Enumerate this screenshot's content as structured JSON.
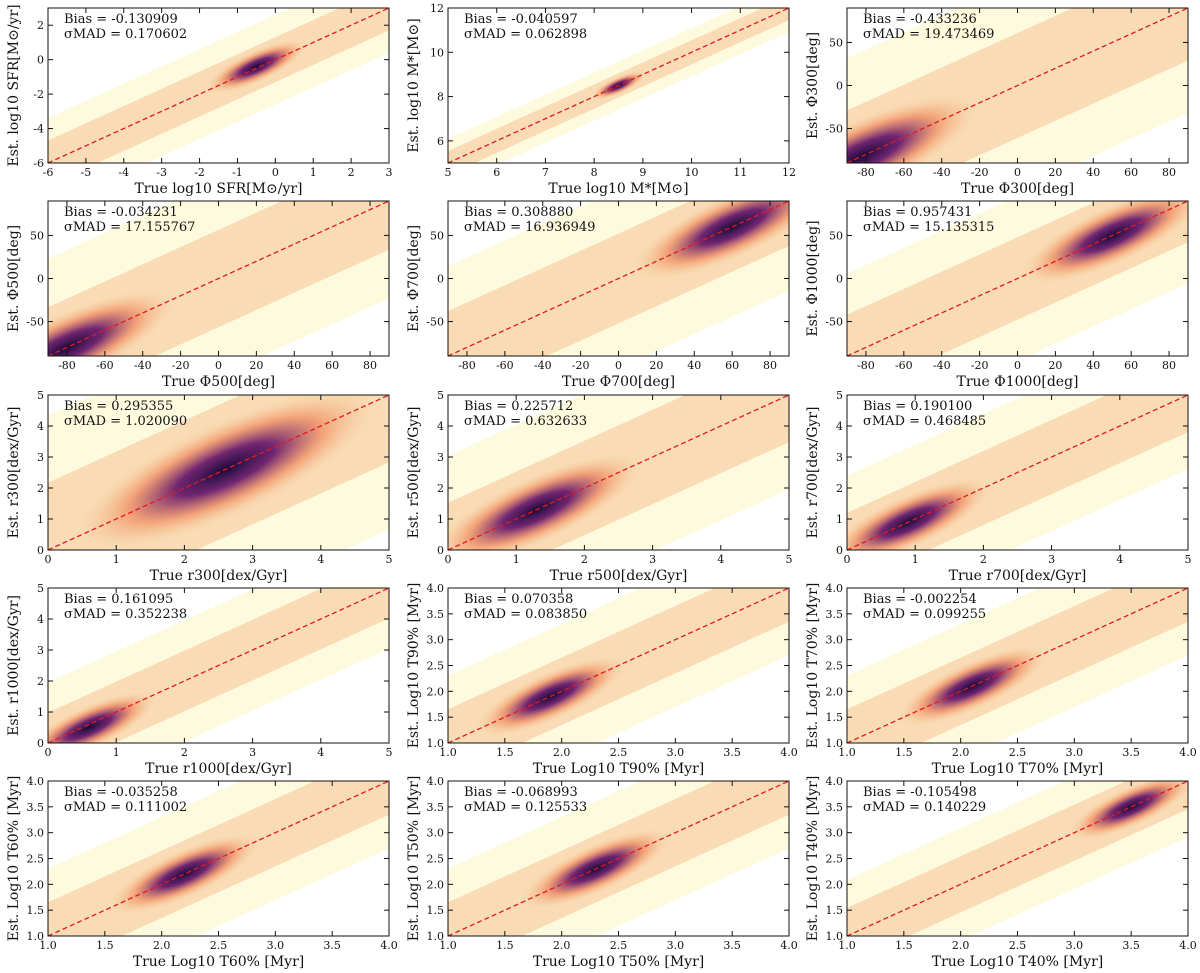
{
  "colors": {
    "identity_line": "#e41a1c",
    "density_low": "#fbf5c2",
    "density_mid": "#f08a5e",
    "density_high": "#1b0b3b"
  },
  "chart_data": [
    {
      "type": "scatter",
      "xlabel": "True log10 SFR[M⊙/yr]",
      "ylabel": "Est. log10 SFR[M⊙/yr]",
      "xlim": [
        -6,
        3
      ],
      "ylim": [
        -6,
        3
      ],
      "xticks": [
        -6,
        -5,
        -4,
        -3,
        -2,
        -1,
        0,
        1,
        2,
        3
      ],
      "yticks": [
        -6,
        -4,
        -2,
        0,
        2
      ],
      "bias_label": "Bias = -0.130909",
      "mad_label": "σMAD = 0.170602",
      "identity_line": [
        [
          -6,
          -6
        ],
        [
          3,
          3
        ]
      ],
      "density_peak": [
        -0.5,
        -0.4
      ],
      "spread": 0.6
    },
    {
      "type": "scatter",
      "xlabel": "True log10 M*[M⊙]",
      "ylabel": "Est. log10 M*[M⊙]",
      "xlim": [
        5,
        12
      ],
      "ylim": [
        5,
        12
      ],
      "xticks": [
        5,
        6,
        7,
        8,
        9,
        10,
        11,
        12
      ],
      "yticks": [
        6,
        8,
        10,
        12
      ],
      "bias_label": "Bias = -0.040597",
      "mad_label": "σMAD = 0.062898",
      "identity_line": [
        [
          5,
          5
        ],
        [
          12,
          12
        ]
      ],
      "density_peak": [
        8.5,
        8.5
      ],
      "spread": 0.25
    },
    {
      "type": "scatter",
      "xlabel": "True Φ300[deg]",
      "ylabel": "Est. Φ300[deg]",
      "xlim": [
        -90,
        90
      ],
      "ylim": [
        -90,
        90
      ],
      "xticks": [
        -80,
        -60,
        -40,
        -20,
        0,
        20,
        40,
        60,
        80
      ],
      "yticks": [
        -50,
        0,
        50
      ],
      "bias_label": "Bias = -0.433236",
      "mad_label": "σMAD = 19.473469",
      "identity_line": [
        [
          -90,
          -90
        ],
        [
          90,
          90
        ]
      ],
      "density_peak": [
        -82,
        -82
      ],
      "spread": 28
    },
    {
      "type": "scatter",
      "xlabel": "True Φ500[deg]",
      "ylabel": "Est. Φ500[deg]",
      "xlim": [
        -90,
        90
      ],
      "ylim": [
        -90,
        90
      ],
      "xticks": [
        -80,
        -60,
        -40,
        -20,
        0,
        20,
        40,
        60,
        80
      ],
      "yticks": [
        -50,
        0,
        50
      ],
      "bias_label": "Bias = -0.034231",
      "mad_label": "σMAD = 17.155767",
      "identity_line": [
        [
          -90,
          -90
        ],
        [
          90,
          90
        ]
      ],
      "density_peak": [
        -80,
        -80
      ],
      "spread": 26
    },
    {
      "type": "scatter",
      "xlabel": "True Φ700[deg]",
      "ylabel": "Est. Φ700[deg]",
      "xlim": [
        -90,
        90
      ],
      "ylim": [
        -90,
        90
      ],
      "xticks": [
        -80,
        -60,
        -40,
        -20,
        0,
        20,
        40,
        60,
        80
      ],
      "yticks": [
        -50,
        0,
        50
      ],
      "bias_label": "Bias = 0.308880",
      "mad_label": "σMAD = 16.936949",
      "identity_line": [
        [
          -90,
          -90
        ],
        [
          90,
          90
        ]
      ],
      "density_peak": [
        60,
        60
      ],
      "spread": 24
    },
    {
      "type": "scatter",
      "xlabel": "True Φ1000[deg]",
      "ylabel": "Est. Φ1000[deg]",
      "xlim": [
        -90,
        90
      ],
      "ylim": [
        -90,
        90
      ],
      "xticks": [
        -80,
        -60,
        -40,
        -20,
        0,
        20,
        40,
        60,
        80
      ],
      "yticks": [
        -50,
        0,
        50
      ],
      "bias_label": "Bias = 0.957431",
      "mad_label": "σMAD = 15.135315",
      "identity_line": [
        [
          -90,
          -90
        ],
        [
          90,
          90
        ]
      ],
      "density_peak": [
        50,
        50
      ],
      "spread": 22
    },
    {
      "type": "scatter",
      "xlabel": "True r300[dex/Gyr]",
      "ylabel": "Est. r300[dex/Gyr]",
      "xlim": [
        0,
        5
      ],
      "ylim": [
        0,
        5
      ],
      "xticks": [
        0,
        1,
        2,
        3,
        4,
        5
      ],
      "yticks": [
        0,
        1,
        2,
        3,
        4,
        5
      ],
      "bias_label": "Bias = 0.295355",
      "mad_label": "σMAD = 1.020090",
      "identity_line": [
        [
          0,
          0
        ],
        [
          5,
          5
        ]
      ],
      "density_peak": [
        2.6,
        2.6
      ],
      "spread": 1.0
    },
    {
      "type": "scatter",
      "xlabel": "True r500[dex/Gyr]",
      "ylabel": "Est. r500[dex/Gyr]",
      "xlim": [
        0,
        5
      ],
      "ylim": [
        0,
        5
      ],
      "xticks": [
        0,
        1,
        2,
        3,
        4,
        5
      ],
      "yticks": [
        0,
        1,
        2,
        3,
        4,
        5
      ],
      "bias_label": "Bias = 0.225712",
      "mad_label": "σMAD = 0.632633",
      "identity_line": [
        [
          0,
          0
        ],
        [
          5,
          5
        ]
      ],
      "density_peak": [
        1.3,
        1.3
      ],
      "spread": 0.7
    },
    {
      "type": "scatter",
      "xlabel": "True r700[dex/Gyr]",
      "ylabel": "Est. r700[dex/Gyr]",
      "xlim": [
        0,
        5
      ],
      "ylim": [
        0,
        5
      ],
      "xticks": [
        0,
        1,
        2,
        3,
        4,
        5
      ],
      "yticks": [
        0,
        1,
        2,
        3,
        4,
        5
      ],
      "bias_label": "Bias = 0.190100",
      "mad_label": "σMAD = 0.468485",
      "identity_line": [
        [
          0,
          0
        ],
        [
          5,
          5
        ]
      ],
      "density_peak": [
        0.9,
        0.9
      ],
      "spread": 0.55
    },
    {
      "type": "scatter",
      "xlabel": "True r1000[dex/Gyr]",
      "ylabel": "Est. r1000[dex/Gyr]",
      "xlim": [
        0,
        5
      ],
      "ylim": [
        0,
        5
      ],
      "xticks": [
        0,
        1,
        2,
        3,
        4,
        5
      ],
      "yticks": [
        0,
        1,
        2,
        3,
        4,
        5
      ],
      "bias_label": "Bias = 0.161095",
      "mad_label": "σMAD = 0.352238",
      "identity_line": [
        [
          0,
          0
        ],
        [
          5,
          5
        ]
      ],
      "density_peak": [
        0.6,
        0.5
      ],
      "spread": 0.45
    },
    {
      "type": "scatter",
      "xlabel": "True Log10 T90% [Myr]",
      "ylabel": "Est. Log10 T90% [Myr]",
      "xlim": [
        1,
        4
      ],
      "ylim": [
        1,
        4
      ],
      "xticks": [
        1.0,
        1.5,
        2.0,
        2.5,
        3.0,
        3.5,
        4.0
      ],
      "yticks": [
        1.0,
        1.5,
        2.0,
        2.5,
        3.0,
        3.5,
        4.0
      ],
      "bias_label": "Bias = 0.070358",
      "mad_label": "σMAD = 0.083850",
      "identity_line": [
        [
          1,
          1
        ],
        [
          4,
          4
        ]
      ],
      "density_peak": [
        1.9,
        1.9
      ],
      "spread": 0.3
    },
    {
      "type": "scatter",
      "xlabel": "True Log10 T70% [Myr]",
      "ylabel": "Est. Log10 T70% [Myr]",
      "xlim": [
        1,
        4
      ],
      "ylim": [
        1,
        4
      ],
      "xticks": [
        1.0,
        1.5,
        2.0,
        2.5,
        3.0,
        3.5,
        4.0
      ],
      "yticks": [
        1.0,
        1.5,
        2.0,
        2.5,
        3.0,
        3.5,
        4.0
      ],
      "bias_label": "Bias = -0.002254",
      "mad_label": "σMAD = 0.099255",
      "identity_line": [
        [
          1,
          1
        ],
        [
          4,
          4
        ]
      ],
      "density_peak": [
        2.1,
        2.1
      ],
      "spread": 0.3
    },
    {
      "type": "scatter",
      "xlabel": "True Log10 T60% [Myr]",
      "ylabel": "Est. Log10 T60% [Myr]",
      "xlim": [
        1,
        4
      ],
      "ylim": [
        1,
        4
      ],
      "xticks": [
        1.0,
        1.5,
        2.0,
        2.5,
        3.0,
        3.5,
        4.0
      ],
      "yticks": [
        1.0,
        1.5,
        2.0,
        2.5,
        3.0,
        3.5,
        4.0
      ],
      "bias_label": "Bias = -0.035258",
      "mad_label": "σMAD = 0.111002",
      "identity_line": [
        [
          1,
          1
        ],
        [
          4,
          4
        ]
      ],
      "density_peak": [
        2.2,
        2.2
      ],
      "spread": 0.3
    },
    {
      "type": "scatter",
      "xlabel": "True Log10 T50% [Myr]",
      "ylabel": "Est. Log10 T50% [Myr]",
      "xlim": [
        1,
        4
      ],
      "ylim": [
        1,
        4
      ],
      "xticks": [
        1.0,
        1.5,
        2.0,
        2.5,
        3.0,
        3.5,
        4.0
      ],
      "yticks": [
        1.0,
        1.5,
        2.0,
        2.5,
        3.0,
        3.5,
        4.0
      ],
      "bias_label": "Bias = -0.068993",
      "mad_label": "σMAD = 0.125533",
      "identity_line": [
        [
          1,
          1
        ],
        [
          4,
          4
        ]
      ],
      "density_peak": [
        2.3,
        2.3
      ],
      "spread": 0.3
    },
    {
      "type": "scatter",
      "xlabel": "True Log10 T40% [Myr]",
      "ylabel": "Est. Log10 T40% [Myr]",
      "xlim": [
        1,
        4
      ],
      "ylim": [
        1,
        4
      ],
      "xticks": [
        1.0,
        1.5,
        2.0,
        2.5,
        3.0,
        3.5,
        4.0
      ],
      "yticks": [
        1.0,
        1.5,
        2.0,
        2.5,
        3.0,
        3.5,
        4.0
      ],
      "bias_label": "Bias = -0.105498",
      "mad_label": "σMAD = 0.140229",
      "identity_line": [
        [
          1,
          1
        ],
        [
          4,
          4
        ]
      ],
      "density_peak": [
        3.5,
        3.5
      ],
      "spread": 0.25
    }
  ]
}
